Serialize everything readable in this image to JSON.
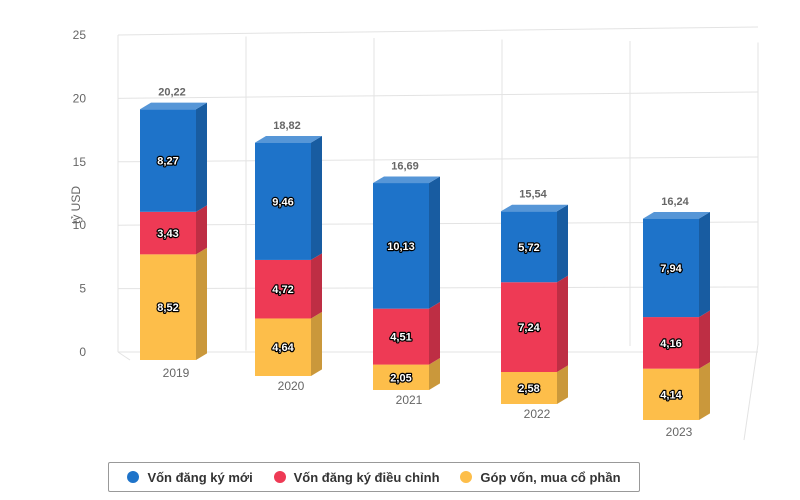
{
  "chart_data": {
    "type": "bar",
    "stacked": true,
    "three_d": true,
    "categories": [
      "2019",
      "2020",
      "2021",
      "2022",
      "2023"
    ],
    "series": [
      {
        "name": "Góp vốn, mua cổ phần",
        "color": "#fdbe4a",
        "values": [
          8.52,
          4.64,
          2.05,
          2.58,
          4.14
        ]
      },
      {
        "name": "Vốn đăng ký điều chỉnh",
        "color": "#ee3a55",
        "values": [
          3.43,
          4.72,
          4.51,
          7.24,
          4.16
        ]
      },
      {
        "name": "Vốn đăng ký mới",
        "color": "#1e73c9",
        "values": [
          8.27,
          9.46,
          10.13,
          5.72,
          7.94
        ]
      }
    ],
    "value_labels": [
      [
        "8,52",
        "4,64",
        "2,05",
        "2,58",
        "4,14"
      ],
      [
        "3,43",
        "4,72",
        "4,51",
        "7,24",
        "4,16"
      ],
      [
        "8,27",
        "9,46",
        "10,13",
        "5,72",
        "7,94"
      ]
    ],
    "totals": [
      20.22,
      18.82,
      16.69,
      15.54,
      16.24
    ],
    "total_labels": [
      "20,22",
      "18,82",
      "16,69",
      "15,54",
      "16,24"
    ],
    "ylabel": "tỷ USD",
    "ylim": [
      0,
      25
    ],
    "yticks": [
      "0",
      "5",
      "10",
      "15",
      "20",
      "25"
    ],
    "grid": true,
    "legend_position": "bottom"
  },
  "legend": {
    "items": [
      {
        "label": "Vốn đăng ký mới",
        "color": "#1e73c9"
      },
      {
        "label": "Vốn đăng ký điều chỉnh",
        "color": "#ee3a55"
      },
      {
        "label": "Góp vốn, mua cổ phần",
        "color": "#fdbe4a"
      }
    ]
  }
}
